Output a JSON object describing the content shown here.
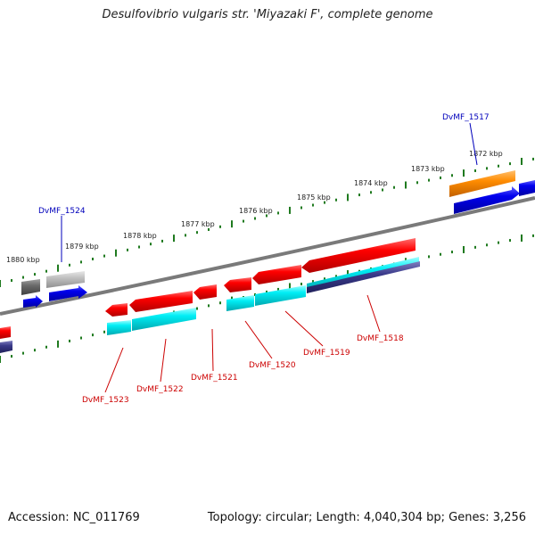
{
  "title": "Desulfovibrio vulgaris str. 'Miyazaki F', complete genome",
  "footer": {
    "accession": "Accession: NC_011769",
    "summary": "Topology: circular; Length: 4,040,304 bp; Genes: 3,256"
  },
  "colors": {
    "backbone": "#8a8a8a",
    "tick": "#1f7a1f",
    "red": "#ee0000",
    "cyan": "#00e8f0",
    "blue": "#0000ee",
    "navy": "#3a3a8a",
    "orange": "#ff8c00",
    "gray_dark": "#6a6a6a",
    "gray_light": "#bdbdbd",
    "label_red": "#cc0000",
    "label_blue": "#0000bb"
  },
  "scale_labels": [
    "1880 kbp",
    "1879 kbp",
    "1878 kbp",
    "1877 kbp",
    "1876 kbp",
    "1875 kbp",
    "1874 kbp",
    "1873 kbp",
    "1872 kbp"
  ],
  "gene_labels": {
    "top": [
      "DvMF_1524",
      "DvMF_1517"
    ],
    "bottom": [
      "DvMF_1523",
      "DvMF_1522",
      "DvMF_1521",
      "DvMF_1520",
      "DvMF_1519",
      "DvMF_1518"
    ]
  }
}
